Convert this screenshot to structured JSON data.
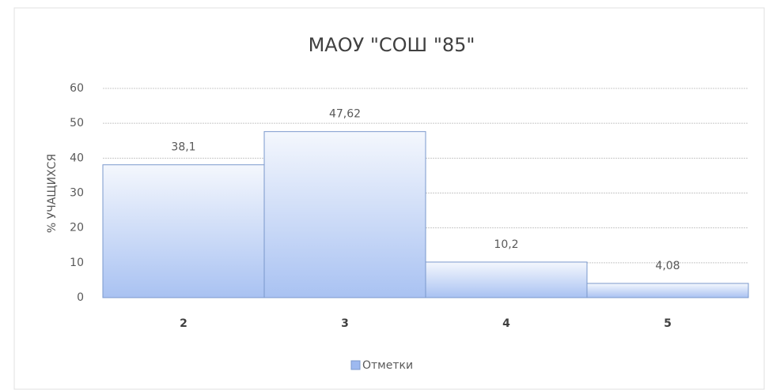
{
  "chart_data": {
    "type": "bar",
    "title": "МАОУ \"СОШ \"85\"",
    "y_label": "% УЧАЩИХСЯ",
    "categories": [
      "2",
      "3",
      "4",
      "5"
    ],
    "series": [
      {
        "name": "Отметки",
        "color": "#9db9f0",
        "values": [
          38.1,
          47.62,
          10.2,
          4.08
        ],
        "value_labels": [
          "38,1",
          "47,62",
          "10,2",
          "4,08"
        ]
      }
    ],
    "ylim": [
      0,
      60
    ],
    "yticks": [
      0,
      10,
      20,
      30,
      40,
      50,
      60
    ],
    "grid": true,
    "legend": "bottom"
  }
}
